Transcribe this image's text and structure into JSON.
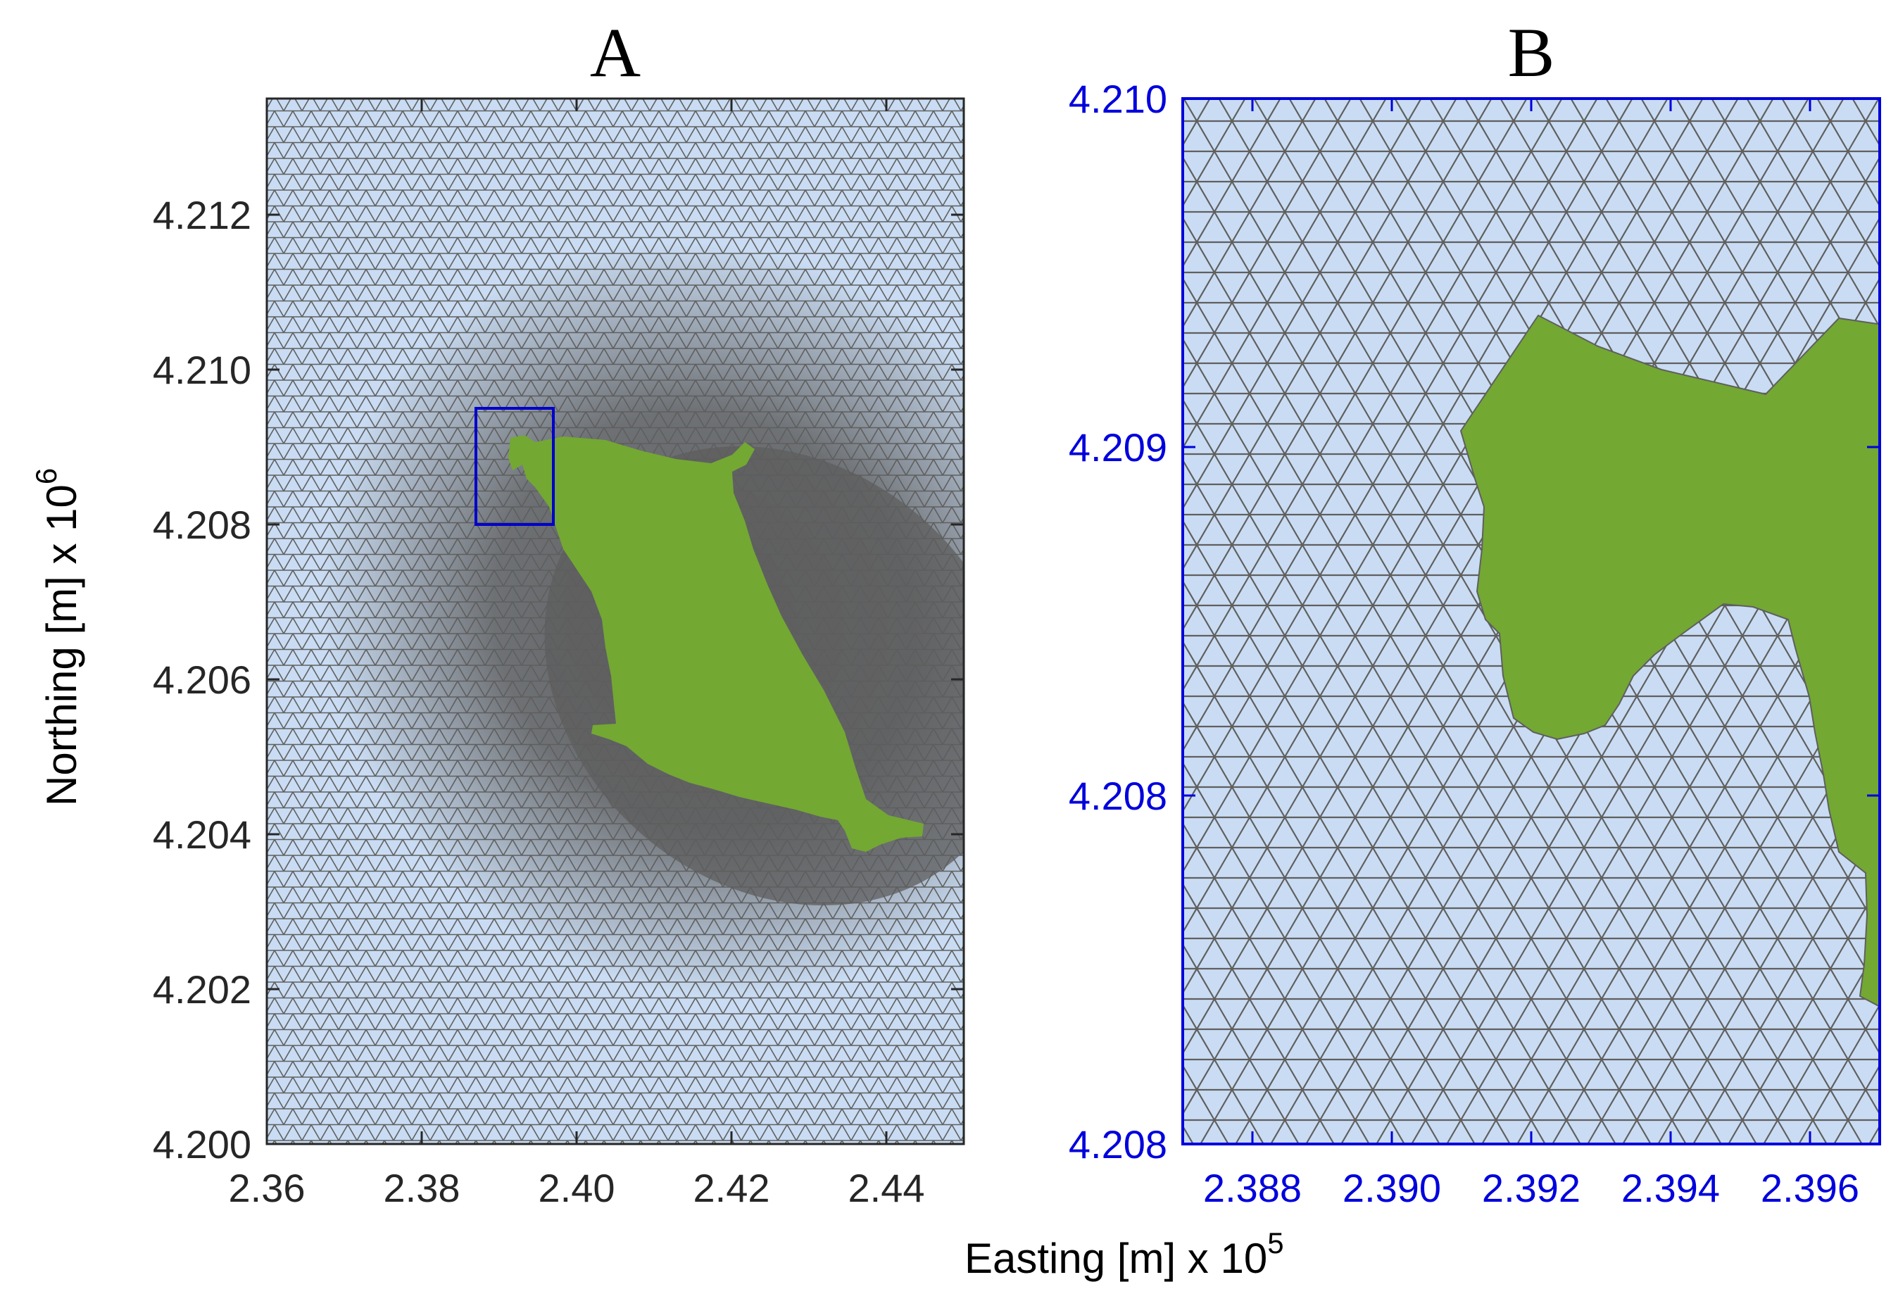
{
  "panels": {
    "a": {
      "title": "A",
      "xlim": [
        2.36,
        2.45
      ],
      "ylim": [
        4.2,
        4.2135
      ],
      "x_ticks": [
        "2.36",
        "2.38",
        "2.40",
        "2.42",
        "2.44"
      ],
      "x_tick_values": [
        2.36,
        2.38,
        2.4,
        2.42,
        2.44
      ],
      "y_ticks": [
        "4.200",
        "4.202",
        "4.204",
        "4.206",
        "4.208",
        "4.210",
        "4.212"
      ],
      "y_tick_values": [
        4.2,
        4.202,
        4.204,
        4.206,
        4.208,
        4.21,
        4.212
      ],
      "zoom_box": {
        "x": [
          2.387,
          2.397
        ],
        "y": [
          4.208,
          4.2095
        ]
      }
    },
    "b": {
      "title": "B",
      "xlim": [
        2.387,
        2.397
      ],
      "ylim": [
        4.208,
        4.2095
      ],
      "x_ticks": [
        "2.388",
        "2.390",
        "2.392",
        "2.394",
        "2.396"
      ],
      "x_tick_values": [
        2.388,
        2.39,
        2.392,
        2.394,
        2.396
      ],
      "y_ticks": [
        "4.208",
        "4.208",
        "4.209",
        "4.210"
      ],
      "y_tick_values": [
        4.208,
        4.2085,
        4.209,
        4.2095
      ]
    }
  },
  "xlabel": {
    "text": "Easting [m] x 10",
    "exp": "5"
  },
  "ylabel": {
    "text": "Northing [m] x 10",
    "exp": "6"
  },
  "colors": {
    "water": "#c9dcf3",
    "land": "#73a833",
    "mesh": "#606060",
    "dense_mesh": "#5e5e5e",
    "zoom_box": "#0000cc",
    "axis_b": "#0000dd"
  }
}
